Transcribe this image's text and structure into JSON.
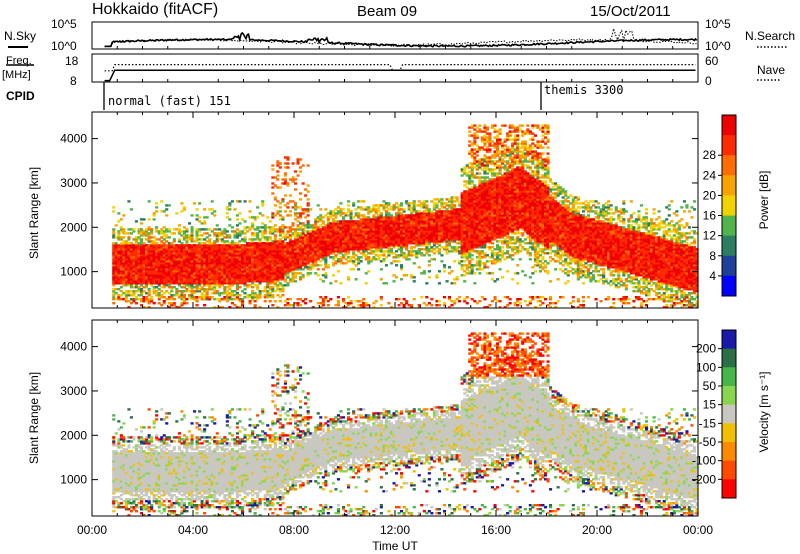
{
  "header": {
    "station": "Hokkaido (fitACF)",
    "beam": "Beam 09",
    "date": "15/Oct/2011"
  },
  "top_panel": {
    "left_label": "N.Sky",
    "left_ticks": [
      "10^5",
      "10^0"
    ],
    "right_ticks": [
      "10^5",
      "10^0"
    ],
    "right_label": "N.Search"
  },
  "freq_panel": {
    "left_label_1": "Freq.",
    "left_label_2": "[MHz]",
    "left_ticks": [
      "18",
      "8"
    ],
    "right_ticks": [
      "60",
      "0"
    ],
    "right_label": "Nave"
  },
  "cpid": {
    "label": "CPID",
    "modes": [
      {
        "name": "normal (fast) 151",
        "start": "00:50"
      },
      {
        "name": "themis 3300",
        "start": "18:00"
      }
    ]
  },
  "colors": {
    "power_scale": [
      "#0000ff",
      "#1e3f9a",
      "#2c7d62",
      "#52b34c",
      "#f2d200",
      "#f8a400",
      "#ff6d00",
      "#ff2b00",
      "#ee0000"
    ],
    "velocity_scale": [
      "#1a1aa8",
      "#2b6f47",
      "#47b64a",
      "#88d64e",
      "#c8c8c0",
      "#f0c000",
      "#ff8a00",
      "#ff4a00",
      "#ff0000"
    ],
    "background": "#ffffff"
  },
  "chart_data": [
    {
      "type": "heatmap",
      "title": "Power",
      "ylabel": "Slant Range [km]",
      "xlabel": "",
      "x_ticks": [
        "00:00",
        "04:00",
        "08:00",
        "12:00",
        "16:00",
        "20:00",
        "00:00"
      ],
      "y_ticks": [
        "1000",
        "2000",
        "3000",
        "4000"
      ],
      "ylim": [
        180,
        4600
      ],
      "colorbar_label": "Power [dB]",
      "colorbar_ticks": [
        "4",
        "8",
        "12",
        "16",
        "20",
        "24",
        "28"
      ],
      "bands": [
        {
          "hours": [
            0.8,
            7.5
          ],
          "range_km": [
            800,
            1450
          ],
          "level": "high"
        },
        {
          "hours": [
            7.5,
            14.5
          ],
          "range_km": [
            1300,
            2200
          ],
          "level": "high"
        },
        {
          "hours": [
            14.5,
            18.0
          ],
          "range_km": [
            1800,
            3200
          ],
          "level": "high"
        },
        {
          "hours": [
            18.0,
            24.0
          ],
          "range_km": [
            800,
            2300
          ],
          "level": "high"
        }
      ]
    },
    {
      "type": "heatmap",
      "title": "Velocity",
      "ylabel": "Slant Range [km]",
      "xlabel": "Time UT",
      "x_ticks": [
        "00:00",
        "04:00",
        "08:00",
        "12:00",
        "16:00",
        "20:00",
        "00:00"
      ],
      "y_ticks": [
        "1000",
        "2000",
        "3000",
        "4000"
      ],
      "ylim": [
        180,
        4600
      ],
      "colorbar_label": "Velocity [m s⁻¹]",
      "colorbar_ticks": [
        "200",
        "100",
        "50",
        "15",
        "-15",
        "-50",
        "-100",
        "-200"
      ]
    }
  ]
}
